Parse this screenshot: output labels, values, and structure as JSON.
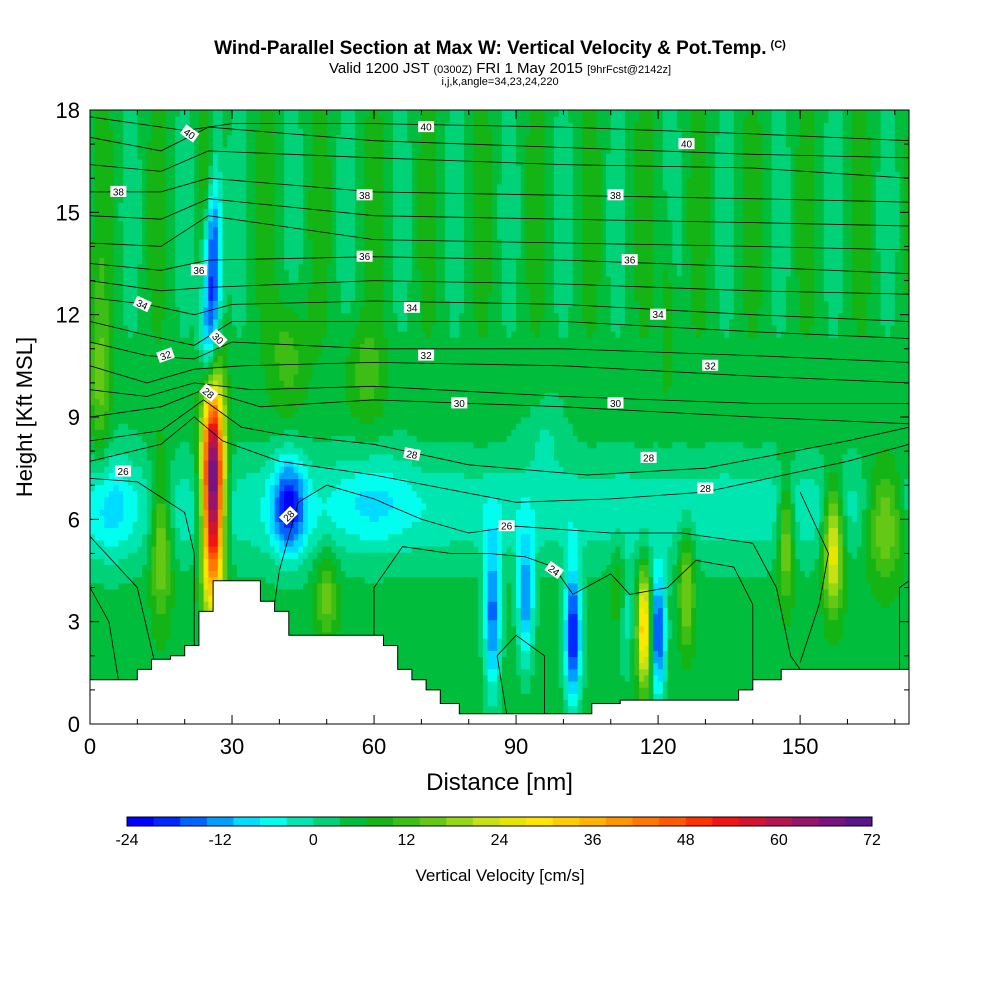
{
  "header": {
    "title": "Wind-Parallel Section at Max W: Vertical Velocity & Pot.Temp.",
    "copyright": "(C)",
    "valid_prefix": "Valid 1200 JST",
    "valid_utc": "(0300Z)",
    "valid_suffix": "FRI 1 May 2015",
    "forecast_tag": "[9hrFcst@2142z]",
    "index_line": "i,j,k,angle=34,23,24,220"
  },
  "chart_data": {
    "type": "heatmap",
    "title": "Wind-Parallel Section at Max W: Vertical Velocity & Pot.Temp.",
    "xlabel": "Distance [nm]",
    "ylabel": "Height [Kft MSL]",
    "xlim": [
      0,
      173
    ],
    "ylim": [
      0,
      18
    ],
    "x_ticks": [
      0,
      30,
      60,
      90,
      120,
      150
    ],
    "y_ticks": [
      0,
      3,
      6,
      9,
      12,
      15,
      18
    ],
    "colorbar": {
      "label": "Vertical Velocity [cm/s]",
      "ticks": [
        -24,
        -12,
        0,
        12,
        24,
        36,
        48,
        60,
        72
      ],
      "range": [
        -24,
        72
      ],
      "step": 3,
      "colors": [
        "#0000ff",
        "#0028ff",
        "#0064ff",
        "#00a0ff",
        "#00dcff",
        "#00ffee",
        "#00e6b0",
        "#00d278",
        "#00be3c",
        "#14b414",
        "#3cbe14",
        "#64c814",
        "#96d714",
        "#c8e114",
        "#e6e600",
        "#ffe600",
        "#ffcc00",
        "#ffb400",
        "#ff9600",
        "#ff7800",
        "#ff5a00",
        "#ff3200",
        "#f01414",
        "#d21432",
        "#b41450",
        "#96146e",
        "#781482",
        "#5a148c"
      ]
    },
    "terrain": [
      [
        0,
        1.3
      ],
      [
        10,
        1.3
      ],
      [
        10,
        1.6
      ],
      [
        13,
        1.6
      ],
      [
        13,
        1.9
      ],
      [
        17,
        1.9
      ],
      [
        17,
        2.0
      ],
      [
        20,
        2.0
      ],
      [
        20,
        2.3
      ],
      [
        23,
        2.3
      ],
      [
        23,
        3.3
      ],
      [
        26,
        3.3
      ],
      [
        26,
        4.2
      ],
      [
        30,
        4.2
      ],
      [
        30,
        4.2
      ],
      [
        36,
        4.2
      ],
      [
        36,
        3.6
      ],
      [
        39,
        3.6
      ],
      [
        39,
        3.3
      ],
      [
        42,
        3.3
      ],
      [
        42,
        2.6
      ],
      [
        56,
        2.6
      ],
      [
        56,
        2.6
      ],
      [
        62,
        2.6
      ],
      [
        62,
        2.3
      ],
      [
        65,
        2.3
      ],
      [
        65,
        1.6
      ],
      [
        68,
        1.6
      ],
      [
        68,
        1.3
      ],
      [
        71,
        1.3
      ],
      [
        71,
        1.0
      ],
      [
        74,
        1.0
      ],
      [
        74,
        0.6
      ],
      [
        78,
        0.6
      ],
      [
        78,
        0.3
      ],
      [
        87,
        0.3
      ],
      [
        87,
        0.3
      ],
      [
        106,
        0.3
      ],
      [
        106,
        0.6
      ],
      [
        112,
        0.6
      ],
      [
        112,
        0.7
      ],
      [
        130,
        0.7
      ],
      [
        130,
        0.7
      ],
      [
        137,
        0.7
      ],
      [
        137,
        1.0
      ],
      [
        140,
        1.0
      ],
      [
        140,
        1.3
      ],
      [
        146,
        1.3
      ],
      [
        146,
        1.6
      ],
      [
        173,
        1.6
      ]
    ],
    "updrafts": [
      {
        "x": 26,
        "z": 7.0,
        "sx": 1.6,
        "sz": 2.3,
        "peak": 62
      },
      {
        "x": 25,
        "z": 16.2,
        "sx": 1.3,
        "sz": 1.2,
        "peak": 10
      },
      {
        "x": 15,
        "z": 5.5,
        "sx": 1.6,
        "sz": 1.6,
        "peak": 14
      },
      {
        "x": 117,
        "z": 2.8,
        "sx": 1.0,
        "sz": 1.2,
        "peak": 26
      },
      {
        "x": 126,
        "z": 4.0,
        "sx": 1.2,
        "sz": 1.2,
        "peak": 12
      },
      {
        "x": 147,
        "z": 5.5,
        "sx": 1.2,
        "sz": 1.3,
        "peak": 14
      },
      {
        "x": 157,
        "z": 5.3,
        "sx": 1.5,
        "sz": 1.3,
        "peak": 22
      },
      {
        "x": 168,
        "z": 6.0,
        "sx": 3.0,
        "sz": 1.2,
        "peak": 16
      },
      {
        "x": 50,
        "z": 3.8,
        "sx": 1.6,
        "sz": 0.9,
        "peak": 10
      },
      {
        "x": 112,
        "z": 4.0,
        "sx": 1.2,
        "sz": 1.0,
        "peak": 9
      },
      {
        "x": 42,
        "z": 10.8,
        "sx": 2.5,
        "sz": 1.2,
        "peak": 7
      },
      {
        "x": 58,
        "z": 10.3,
        "sx": 3.0,
        "sz": 1.0,
        "peak": 6
      },
      {
        "x": 2,
        "z": 10.0,
        "sx": 1.5,
        "sz": 2.0,
        "peak": 8
      },
      {
        "x": 122,
        "z": 12.3,
        "sx": 1.0,
        "sz": 2.0,
        "peak": 5
      }
    ],
    "downdrafts": [
      {
        "x": 26,
        "z": 14.0,
        "sx": 1.3,
        "sz": 2.4,
        "peak": -24
      },
      {
        "x": 25,
        "z": 11.2,
        "sx": 1.3,
        "sz": 1.2,
        "peak": -14
      },
      {
        "x": 42,
        "z": 6.4,
        "sx": 2.5,
        "sz": 1.0,
        "peak": -18
      },
      {
        "x": 85,
        "z": 3.2,
        "sx": 1.2,
        "sz": 1.6,
        "peak": -18
      },
      {
        "x": 92,
        "z": 3.7,
        "sx": 1.2,
        "sz": 1.3,
        "peak": -16
      },
      {
        "x": 102,
        "z": 2.6,
        "sx": 1.2,
        "sz": 1.4,
        "peak": -24
      },
      {
        "x": 120,
        "z": 2.7,
        "sx": 1.1,
        "sz": 1.3,
        "peak": -21
      },
      {
        "x": 113,
        "z": 3.5,
        "sx": 1.2,
        "sz": 1.2,
        "peak": -9
      },
      {
        "x": 60,
        "z": 6.6,
        "sx": 6.0,
        "sz": 1.0,
        "peak": -5
      },
      {
        "x": 4,
        "z": 6.5,
        "sx": 3.5,
        "sz": 1.2,
        "peak": -6
      },
      {
        "x": 96,
        "z": 8.6,
        "sx": 3.0,
        "sz": 0.8,
        "peak": -4
      }
    ],
    "theta_labels": [
      {
        "text": "40",
        "x": 21,
        "z": 17.3,
        "angle": 35
      },
      {
        "text": "40",
        "x": 71,
        "z": 17.5,
        "angle": 0
      },
      {
        "text": "40",
        "x": 126,
        "z": 17.0,
        "angle": 0
      },
      {
        "text": "38",
        "x": 6,
        "z": 15.6,
        "angle": 0
      },
      {
        "text": "38",
        "x": 58,
        "z": 15.5,
        "angle": 0
      },
      {
        "text": "38",
        "x": 111,
        "z": 15.5,
        "angle": 0
      },
      {
        "text": "36",
        "x": 23,
        "z": 13.3,
        "angle": 0
      },
      {
        "text": "36",
        "x": 58,
        "z": 13.7,
        "angle": 0
      },
      {
        "text": "36",
        "x": 114,
        "z": 13.6,
        "angle": 0
      },
      {
        "text": "34",
        "x": 11,
        "z": 12.3,
        "angle": 25
      },
      {
        "text": "34",
        "x": 68,
        "z": 12.2,
        "angle": 0
      },
      {
        "text": "34",
        "x": 120,
        "z": 12.0,
        "angle": 0
      },
      {
        "text": "32",
        "x": 16,
        "z": 10.8,
        "angle": -20
      },
      {
        "text": "32",
        "x": 71,
        "z": 10.8,
        "angle": 0
      },
      {
        "text": "32",
        "x": 131,
        "z": 10.5,
        "angle": 0
      },
      {
        "text": "30",
        "x": 27,
        "z": 11.3,
        "angle": 45
      },
      {
        "text": "30",
        "x": 78,
        "z": 9.4,
        "angle": 0
      },
      {
        "text": "30",
        "x": 111,
        "z": 9.4,
        "angle": 0
      },
      {
        "text": "28",
        "x": 25,
        "z": 9.7,
        "angle": 40
      },
      {
        "text": "28",
        "x": 68,
        "z": 7.9,
        "angle": 10
      },
      {
        "text": "28",
        "x": 118,
        "z": 7.8,
        "angle": 0
      },
      {
        "text": "28",
        "x": 130,
        "z": 6.9,
        "angle": 0
      },
      {
        "text": "28",
        "x": 42,
        "z": 6.1,
        "angle": -45
      },
      {
        "text": "26",
        "x": 7,
        "z": 7.4,
        "angle": 0
      },
      {
        "text": "26",
        "x": 88,
        "z": 5.8,
        "angle": 0
      },
      {
        "text": "24",
        "x": 98,
        "z": 4.5,
        "angle": 35
      }
    ],
    "theta_lines": [
      [
        [
          0,
          17.8
        ],
        [
          20,
          17.4
        ],
        [
          30,
          17.6
        ],
        [
          60,
          17.6
        ],
        [
          100,
          17.5
        ],
        [
          140,
          17.3
        ],
        [
          173,
          17.1
        ]
      ],
      [
        [
          0,
          17.2
        ],
        [
          15,
          16.8
        ],
        [
          25,
          17.5
        ],
        [
          60,
          17.1
        ],
        [
          100,
          16.9
        ],
        [
          140,
          16.7
        ],
        [
          173,
          16.6
        ]
      ],
      [
        [
          0,
          16.4
        ],
        [
          15,
          16.2
        ],
        [
          25,
          16.8
        ],
        [
          60,
          16.6
        ],
        [
          100,
          16.4
        ],
        [
          140,
          16.3
        ],
        [
          173,
          16.0
        ]
      ],
      [
        [
          0,
          15.6
        ],
        [
          15,
          15.6
        ],
        [
          25,
          16.0
        ],
        [
          60,
          15.6
        ],
        [
          100,
          15.5
        ],
        [
          140,
          15.4
        ],
        [
          173,
          15.3
        ]
      ],
      [
        [
          0,
          14.9
        ],
        [
          15,
          14.8
        ],
        [
          25,
          15.4
        ],
        [
          60,
          14.9
        ],
        [
          100,
          14.8
        ],
        [
          140,
          14.7
        ],
        [
          173,
          14.6
        ]
      ],
      [
        [
          0,
          14.1
        ],
        [
          15,
          14.0
        ],
        [
          25,
          14.9
        ],
        [
          60,
          14.2
        ],
        [
          100,
          14.1
        ],
        [
          140,
          14.0
        ],
        [
          173,
          13.9
        ]
      ],
      [
        [
          0,
          13.5
        ],
        [
          15,
          13.3
        ],
        [
          25,
          13.6
        ],
        [
          60,
          13.7
        ],
        [
          100,
          13.6
        ],
        [
          140,
          13.4
        ],
        [
          173,
          13.2
        ]
      ],
      [
        [
          0,
          13.0
        ],
        [
          15,
          12.7
        ],
        [
          25,
          12.8
        ],
        [
          60,
          13.0
        ],
        [
          100,
          12.9
        ],
        [
          140,
          12.7
        ],
        [
          173,
          12.6
        ]
      ],
      [
        [
          0,
          12.5
        ],
        [
          12,
          12.3
        ],
        [
          22,
          12.0
        ],
        [
          30,
          12.3
        ],
        [
          60,
          12.4
        ],
        [
          100,
          12.3
        ],
        [
          140,
          12.0
        ],
        [
          173,
          11.8
        ]
      ],
      [
        [
          0,
          11.8
        ],
        [
          12,
          11.4
        ],
        [
          22,
          11.1
        ],
        [
          30,
          11.8
        ],
        [
          60,
          11.8
        ],
        [
          100,
          11.8
        ],
        [
          140,
          11.5
        ],
        [
          173,
          11.3
        ]
      ],
      [
        [
          0,
          11.2
        ],
        [
          12,
          10.8
        ],
        [
          22,
          10.7
        ],
        [
          30,
          11.2
        ],
        [
          60,
          11.0
        ],
        [
          100,
          11.0
        ],
        [
          140,
          10.8
        ],
        [
          173,
          10.6
        ]
      ],
      [
        [
          0,
          10.5
        ],
        [
          12,
          10.0
        ],
        [
          22,
          10.4
        ],
        [
          32,
          10.5
        ],
        [
          60,
          10.6
        ],
        [
          100,
          10.5
        ],
        [
          140,
          10.2
        ],
        [
          173,
          10.0
        ]
      ],
      [
        [
          0,
          9.8
        ],
        [
          12,
          9.6
        ],
        [
          22,
          10.0
        ],
        [
          34,
          9.8
        ],
        [
          60,
          9.9
        ],
        [
          100,
          9.6
        ],
        [
          140,
          9.4
        ],
        [
          173,
          9.4
        ]
      ],
      [
        [
          0,
          9.0
        ],
        [
          15,
          9.3
        ],
        [
          24,
          9.8
        ],
        [
          36,
          9.3
        ],
        [
          60,
          9.5
        ],
        [
          100,
          9.3
        ],
        [
          140,
          9.0
        ],
        [
          173,
          8.8
        ]
      ],
      [
        [
          0,
          8.3
        ],
        [
          15,
          8.6
        ],
        [
          24,
          9.5
        ],
        [
          32,
          8.7
        ],
        [
          40,
          8.5
        ],
        [
          60,
          8.2
        ],
        [
          80,
          7.6
        ],
        [
          105,
          7.3
        ],
        [
          130,
          7.5
        ],
        [
          160,
          8.3
        ],
        [
          173,
          8.7
        ]
      ],
      [
        [
          0,
          7.7
        ],
        [
          15,
          8.2
        ],
        [
          22,
          9.0
        ],
        [
          28,
          8.3
        ],
        [
          40,
          7.7
        ],
        [
          60,
          7.3
        ],
        [
          90,
          6.5
        ],
        [
          110,
          6.6
        ],
        [
          130,
          6.8
        ],
        [
          160,
          7.7
        ],
        [
          173,
          8.2
        ]
      ],
      [
        [
          0,
          7.2
        ],
        [
          10,
          7.1
        ],
        [
          20,
          6.2
        ],
        [
          22,
          5.0
        ],
        [
          22,
          2.0
        ]
      ],
      [
        [
          38,
          2.6
        ],
        [
          40,
          4.5
        ],
        [
          44,
          6.5
        ],
        [
          50,
          7.0
        ],
        [
          60,
          6.6
        ],
        [
          70,
          6.0
        ],
        [
          80,
          5.6
        ],
        [
          90,
          5.8
        ],
        [
          110,
          5.6
        ],
        [
          125,
          5.6
        ],
        [
          140,
          5.3
        ],
        [
          145,
          4.0
        ],
        [
          148,
          2.0
        ],
        [
          150,
          1.6
        ]
      ],
      [
        [
          60,
          2.6
        ],
        [
          60,
          4.0
        ],
        [
          66,
          5.2
        ],
        [
          76,
          5.0
        ],
        [
          84,
          5.0
        ],
        [
          92,
          4.9
        ],
        [
          98,
          4.6
        ],
        [
          102,
          3.8
        ],
        [
          110,
          4.4
        ],
        [
          114,
          3.8
        ],
        [
          122,
          4.0
        ],
        [
          128,
          4.8
        ],
        [
          136,
          4.6
        ],
        [
          140,
          3.5
        ],
        [
          140,
          1.3
        ]
      ],
      [
        [
          88,
          0.3
        ],
        [
          86,
          2.0
        ],
        [
          90,
          2.6
        ],
        [
          96,
          2.0
        ],
        [
          96,
          0.3
        ]
      ],
      [
        [
          0,
          4.0
        ],
        [
          4,
          3.0
        ],
        [
          6,
          1.3
        ]
      ],
      [
        [
          0,
          5.5
        ],
        [
          10,
          4.0
        ],
        [
          14,
          1.6
        ]
      ],
      [
        [
          150,
          6.8
        ],
        [
          156,
          5.0
        ],
        [
          154,
          3.5
        ],
        [
          150,
          1.8
        ]
      ],
      [
        [
          171,
          1.6
        ],
        [
          171,
          4.0
        ],
        [
          173,
          4.2
        ]
      ]
    ]
  }
}
